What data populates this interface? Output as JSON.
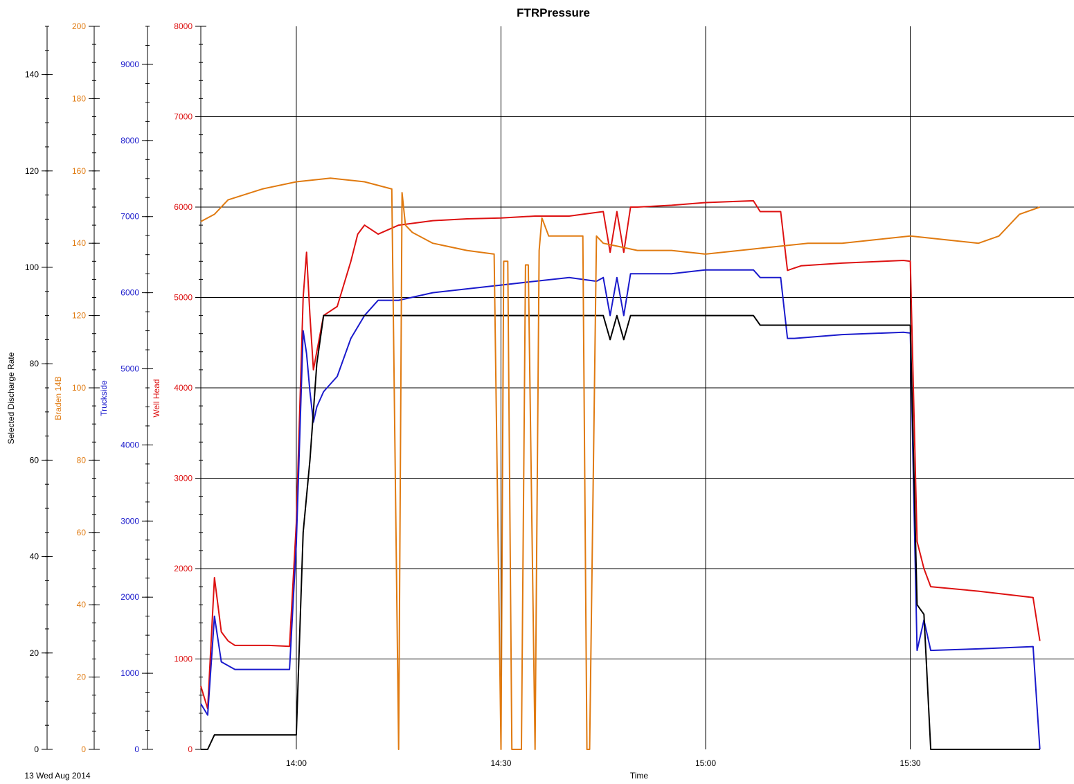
{
  "chart_data": {
    "type": "line",
    "title": "FTRPressure",
    "xlabel": "Time",
    "date_label": "13 Wed  Aug 2014",
    "x_unit": "minutes",
    "xlim": [
      "13:46",
      "15:54"
    ],
    "x_ticks": [
      "14:00",
      "14:30",
      "15:00",
      "15:30"
    ],
    "grid": true,
    "legend": "none",
    "axes": [
      {
        "name": "Selected Discharge Rate",
        "color": "#000000",
        "ylim": [
          0,
          150
        ],
        "ticks": [
          0,
          20,
          40,
          60,
          80,
          100,
          120,
          140
        ],
        "minor_step": 5
      },
      {
        "name": "Braden 14B",
        "color": "#e07a10",
        "ylim": [
          0,
          200
        ],
        "ticks": [
          0,
          20,
          40,
          60,
          80,
          100,
          120,
          140,
          160,
          180,
          200
        ],
        "minor_step": 5
      },
      {
        "name": "Truckside",
        "color": "#1a1acc",
        "ylim": [
          0,
          9500
        ],
        "ticks": [
          0,
          1000,
          2000,
          3000,
          4000,
          5000,
          6000,
          7000,
          8000,
          9000
        ],
        "minor_step": 250
      },
      {
        "name": "Well Head",
        "color": "#dd1111",
        "ylim": [
          0,
          8000
        ],
        "ticks": [
          0,
          1000,
          2000,
          3000,
          4000,
          5000,
          6000,
          7000,
          8000
        ],
        "minor_step": 200
      }
    ],
    "series": [
      {
        "name": "Well Head",
        "axis": 3,
        "color": "#dd1111",
        "x": [
          "13:46",
          "13:47",
          "13:48",
          "13:49",
          "13:50",
          "13:51",
          "13:52",
          "13:54",
          "13:56",
          "13:59",
          "14:00",
          "14:01",
          "14:01.5",
          "14:02",
          "14:02.5",
          "14:03",
          "14:04",
          "14:06",
          "14:08",
          "14:09",
          "14:10",
          "14:11",
          "14:12",
          "14:15",
          "14:20",
          "14:25",
          "14:30",
          "14:35",
          "14:40",
          "14:44",
          "14:45",
          "14:46",
          "14:47",
          "14:48",
          "14:49",
          "14:50",
          "14:55",
          "15:00",
          "15:07",
          "15:08",
          "15:09",
          "15:11",
          "15:12",
          "15:14",
          "15:20",
          "15:29",
          "15:30",
          "15:31",
          "15:32",
          "15:33",
          "15:40",
          "15:48",
          "15:49"
        ],
        "y": [
          700,
          450,
          1900,
          1300,
          1200,
          1150,
          1150,
          1150,
          1150,
          1140,
          2500,
          5000,
          5500,
          4800,
          4200,
          4400,
          4800,
          4900,
          5400,
          5700,
          5800,
          5750,
          5700,
          5800,
          5850,
          5870,
          5880,
          5900,
          5900,
          5940,
          5950,
          5500,
          5950,
          5500,
          6000,
          6000,
          6020,
          6050,
          6070,
          5950,
          5950,
          5950,
          5300,
          5350,
          5380,
          5410,
          5400,
          2300,
          2000,
          1800,
          1750,
          1680,
          1200
        ]
      },
      {
        "name": "Truckside",
        "axis": 2,
        "color": "#1a1acc",
        "x": [
          "13:46",
          "13:47",
          "13:48",
          "13:49",
          "13:50",
          "13:51",
          "13:52",
          "13:54",
          "13:56",
          "13:59",
          "14:00",
          "14:01",
          "14:01.5",
          "14:02",
          "14:02.5",
          "14:03",
          "14:04",
          "14:06",
          "14:08",
          "14:10",
          "14:12",
          "14:15",
          "14:20",
          "14:25",
          "14:30",
          "14:35",
          "14:40",
          "14:44",
          "14:45",
          "14:46",
          "14:47",
          "14:48",
          "14:49",
          "14:50",
          "14:55",
          "15:00",
          "15:07",
          "15:08",
          "15:09",
          "15:11",
          "15:12",
          "15:13",
          "15:20",
          "15:29",
          "15:30",
          "15:31",
          "15:32",
          "15:33",
          "15:40",
          "15:48",
          "15:49"
        ],
        "y": [
          600,
          450,
          1750,
          1150,
          1100,
          1050,
          1050,
          1050,
          1050,
          1050,
          2700,
          5500,
          5200,
          4700,
          4300,
          4500,
          4700,
          4900,
          5400,
          5700,
          5900,
          5900,
          6000,
          6050,
          6100,
          6150,
          6200,
          6150,
          6200,
          5700,
          6200,
          5700,
          6250,
          6250,
          6250,
          6300,
          6300,
          6200,
          6200,
          6200,
          5400,
          5400,
          5450,
          5480,
          5470,
          1300,
          1700,
          1300,
          1320,
          1350,
          0
        ]
      },
      {
        "name": "Selected Discharge Rate",
        "axis": 0,
        "color": "#000000",
        "x": [
          "13:46",
          "13:47",
          "13:48",
          "13:49",
          "13:50",
          "13:52",
          "13:55",
          "13:58",
          "13:59",
          "14:00",
          "14:01",
          "14:02",
          "14:03",
          "14:04",
          "14:10",
          "14:20",
          "14:30",
          "14:40",
          "14:43",
          "14:44",
          "14:45",
          "14:46",
          "14:47",
          "14:48",
          "14:49",
          "14:50",
          "14:55",
          "15:00",
          "15:07",
          "15:08",
          "15:09",
          "15:20",
          "15:29",
          "15:30",
          "15:31",
          "15:32",
          "15:33",
          "15:40",
          "15:48",
          "15:49"
        ],
        "y": [
          0,
          0,
          3,
          3,
          3,
          3,
          3,
          3,
          3,
          3,
          45,
          60,
          80,
          90,
          90,
          90,
          90,
          90,
          90,
          90,
          90,
          85,
          90,
          85,
          90,
          90,
          90,
          90,
          90,
          88,
          88,
          88,
          88,
          88,
          30,
          28,
          0,
          0,
          0,
          0
        ]
      },
      {
        "name": "Braden 14B",
        "axis": 1,
        "color": "#e07a10",
        "x": [
          "13:46",
          "13:48",
          "13:50",
          "13:55",
          "14:00",
          "14:05",
          "14:10",
          "14:14",
          "14:15",
          "14:15.5",
          "14:16",
          "14:17",
          "14:20",
          "14:25",
          "14:29",
          "14:30",
          "14:30.4",
          "14:31",
          "14:31.6",
          "14:32",
          "14:33",
          "14:33.6",
          "14:34",
          "14:35",
          "14:35.6",
          "14:36",
          "14:37",
          "14:40",
          "14:42",
          "14:42.6",
          "14:43",
          "14:44",
          "14:45",
          "14:50",
          "14:55",
          "15:00",
          "15:05",
          "15:10",
          "15:15",
          "15:20",
          "15:25",
          "15:30",
          "15:35",
          "15:40",
          "15:43",
          "15:46",
          "15:49"
        ],
        "y": [
          146,
          148,
          152,
          155,
          157,
          158,
          157,
          155,
          0,
          154,
          145,
          143,
          140,
          138,
          137,
          0,
          135,
          135,
          0,
          0,
          0,
          134,
          134,
          0,
          138,
          147,
          142,
          142,
          142,
          0,
          0,
          142,
          140,
          138,
          138,
          137,
          138,
          139,
          140,
          140,
          141,
          142,
          141,
          140,
          142,
          148,
          150
        ]
      }
    ]
  }
}
